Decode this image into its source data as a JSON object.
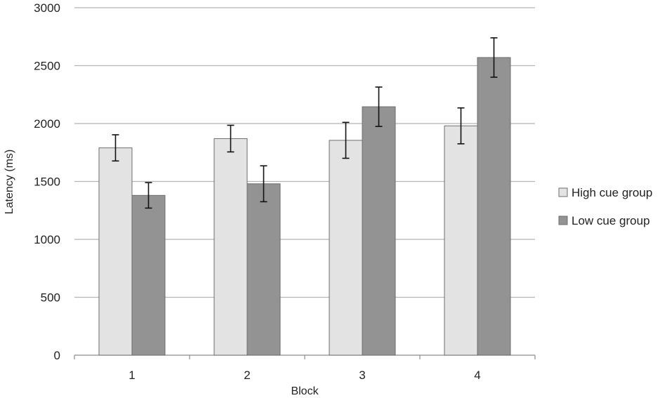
{
  "chart_data": {
    "type": "bar",
    "title": "",
    "xlabel": "Block",
    "ylabel": "Latency (ms)",
    "categories": [
      "1",
      "2",
      "3",
      "4"
    ],
    "ylim": [
      0,
      3000
    ],
    "yticks": [
      0,
      500,
      1000,
      1500,
      2000,
      2500,
      3000
    ],
    "grid": true,
    "legend_position": "right",
    "series": [
      {
        "name": "High cue group",
        "color": "#e3e3e3",
        "values": [
          1790,
          1870,
          1855,
          1980
        ],
        "error": [
          113,
          115,
          155,
          155
        ]
      },
      {
        "name": "Low cue group",
        "color": "#939393",
        "values": [
          1380,
          1480,
          2145,
          2570
        ],
        "error": [
          110,
          155,
          170,
          170
        ]
      }
    ]
  }
}
